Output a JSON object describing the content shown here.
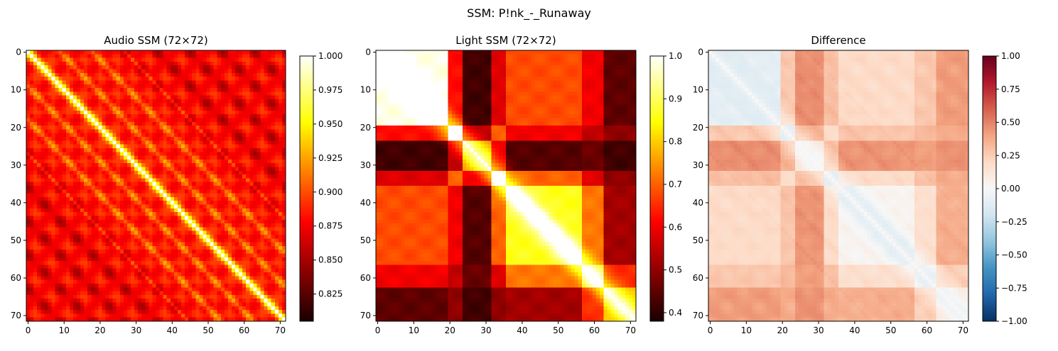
{
  "suptitle": "SSM: P!nk_-_Runaway",
  "chart_data": [
    {
      "type": "heatmap",
      "title": "Audio SSM (72×72)",
      "n": 72,
      "colormap": "hot",
      "xticks": [
        0,
        10,
        20,
        30,
        40,
        50,
        60,
        70
      ],
      "yticks": [
        0,
        10,
        20,
        30,
        40,
        50,
        60,
        70
      ],
      "xlim": [
        -0.5,
        71.5
      ],
      "ylim": [
        71.5,
        -0.5
      ],
      "colorbar": {
        "vmin": 0.805,
        "vmax": 1.0,
        "ticks": [
          0.825,
          0.85,
          0.875,
          0.9,
          0.925,
          0.95,
          0.975,
          1.0
        ],
        "ticklabels": [
          "0.825",
          "0.850",
          "0.875",
          "0.900",
          "0.925",
          "0.950",
          "0.975",
          "1.000"
        ]
      },
      "structure": "diagonal of 1.0; secondary bright diagonals at offsets ~±9 and ~±18; periodic dark spots (~0.81) with period ~9; base level ~0.88"
    },
    {
      "type": "heatmap",
      "title": "Light SSM (72×72)",
      "n": 72,
      "colormap": "hot",
      "xticks": [
        0,
        10,
        20,
        30,
        40,
        50,
        60,
        70
      ],
      "yticks": [
        0,
        10,
        20,
        30,
        40,
        50,
        60,
        70
      ],
      "xlim": [
        -0.5,
        71.5
      ],
      "ylim": [
        71.5,
        -0.5
      ],
      "colorbar": {
        "vmin": 0.38,
        "vmax": 1.0,
        "ticks": [
          0.4,
          0.5,
          0.6,
          0.7,
          0.8,
          0.9,
          1.0
        ],
        "ticklabels": [
          "0.4",
          "0.5",
          "0.6",
          "0.7",
          "0.8",
          "0.9",
          "1.0"
        ]
      },
      "structure": "block 0–20 near 1.0; dark bands (~0.4) at frames 26–31; bright block 36–56 (~0.85); low values ~0.42–0.6 toward 60–71"
    },
    {
      "type": "heatmap",
      "title": "Difference",
      "n": 72,
      "colormap": "RdBu_r",
      "xticks": [
        0,
        10,
        20,
        30,
        40,
        50,
        60,
        70
      ],
      "yticks": [
        0,
        10,
        20,
        30,
        40,
        50,
        60,
        70
      ],
      "xlim": [
        -0.5,
        71.5
      ],
      "ylim": [
        71.5,
        -0.5
      ],
      "colorbar": {
        "vmin": -1.0,
        "vmax": 1.0,
        "ticks": [
          -1.0,
          -0.75,
          -0.5,
          -0.25,
          0.0,
          0.25,
          0.5,
          0.75,
          1.0
        ],
        "ticklabels": [
          "−1.00",
          "−0.75",
          "−0.50",
          "−0.25",
          "0.00",
          "0.25",
          "0.50",
          "0.75",
          "1.00"
        ]
      },
      "structure": "Audio − Light: slightly negative (~−0.1) in block 0–20 and block 36–48, near 0 on the diagonal, positive (~0.3–0.5) in off-block regions"
    }
  ]
}
